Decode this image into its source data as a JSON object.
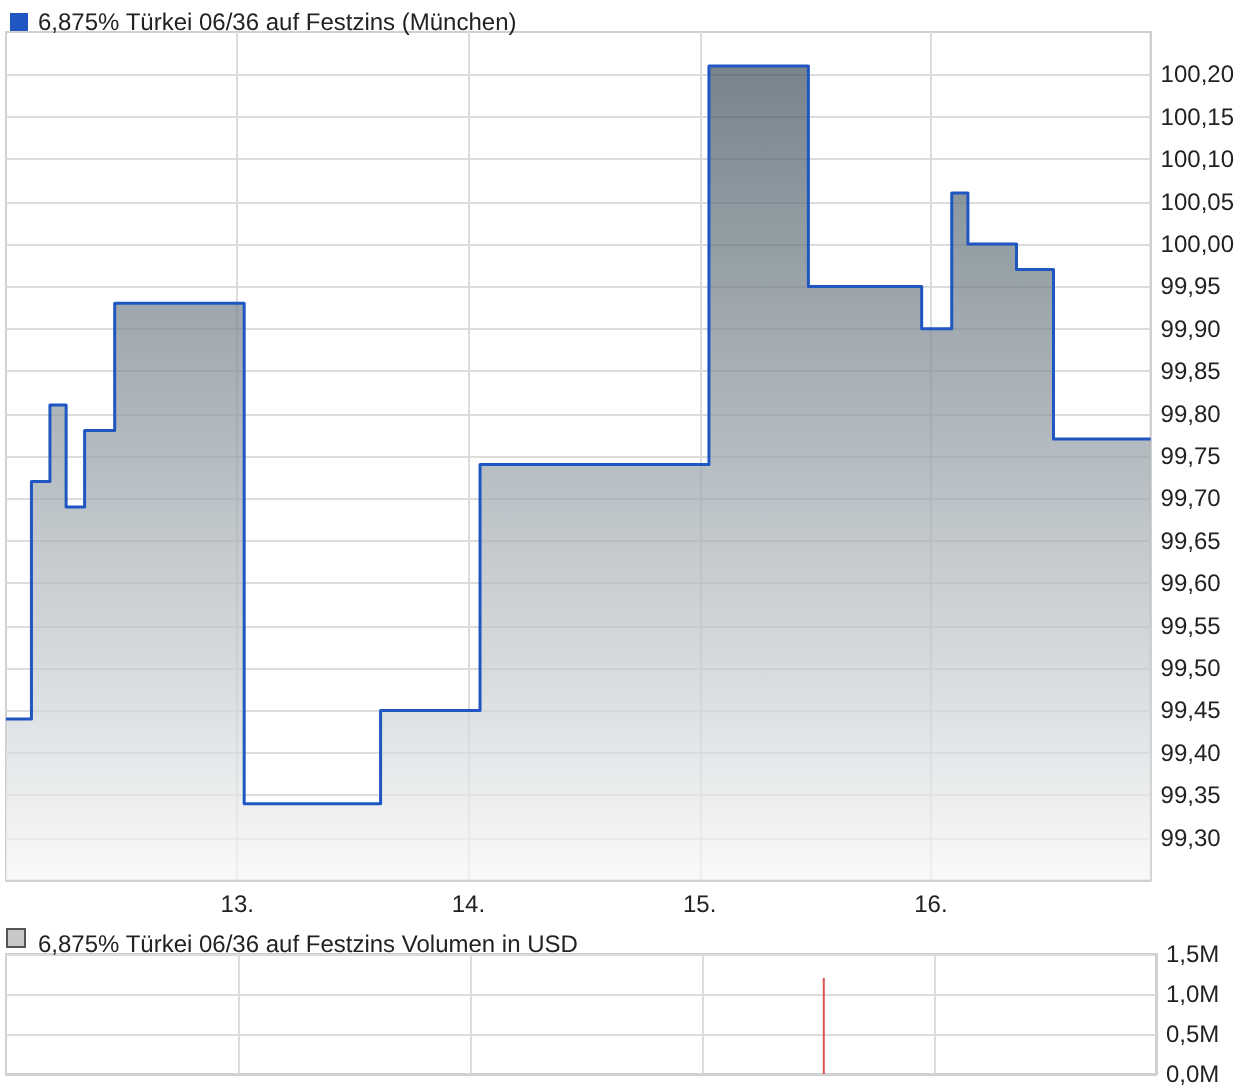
{
  "chart_data": [
    {
      "type": "area",
      "legend": "top left",
      "grid": true,
      "marker": "none",
      "line_style": "solid",
      "series": [
        {
          "name": "6,875% Türkei 06/36 auf Festzins (München)",
          "color": "#1f56c1",
          "x": [
            12.0,
            12.11,
            12.11,
            12.19,
            12.19,
            12.26,
            12.26,
            12.34,
            12.34,
            12.47,
            12.47,
            13.03,
            13.03,
            13.62,
            13.62,
            14.05,
            14.05,
            15.04,
            15.04,
            15.47,
            15.47,
            15.96,
            15.96,
            16.09,
            16.09,
            16.16,
            16.16,
            16.37,
            16.37,
            16.53,
            16.53,
            16.95
          ],
          "values": [
            99.44,
            99.44,
            99.72,
            99.72,
            99.81,
            99.81,
            99.69,
            99.69,
            99.78,
            99.78,
            99.93,
            99.93,
            99.34,
            99.34,
            99.45,
            99.45,
            99.74,
            99.74,
            100.21,
            100.21,
            99.95,
            99.95,
            99.9,
            99.9,
            100.06,
            100.06,
            100.0,
            100.0,
            99.97,
            99.97,
            99.77,
            99.77
          ]
        }
      ],
      "xlim": [
        12.0,
        16.95
      ],
      "xticks": [
        {
          "value": 13,
          "label": "13."
        },
        {
          "value": 14,
          "label": "14."
        },
        {
          "value": 15,
          "label": "15."
        },
        {
          "value": 16,
          "label": "16."
        }
      ],
      "ylim": [
        99.25,
        100.25
      ],
      "yticks": [
        {
          "value": 99.3,
          "label": "99,30"
        },
        {
          "value": 99.35,
          "label": "99,35"
        },
        {
          "value": 99.4,
          "label": "99,40"
        },
        {
          "value": 99.45,
          "label": "99,45"
        },
        {
          "value": 99.5,
          "label": "99,50"
        },
        {
          "value": 99.55,
          "label": "99,55"
        },
        {
          "value": 99.6,
          "label": "99,60"
        },
        {
          "value": 99.65,
          "label": "99,65"
        },
        {
          "value": 99.7,
          "label": "99,70"
        },
        {
          "value": 99.75,
          "label": "99,75"
        },
        {
          "value": 99.8,
          "label": "99,80"
        },
        {
          "value": 99.85,
          "label": "99,85"
        },
        {
          "value": 99.9,
          "label": "99,90"
        },
        {
          "value": 99.95,
          "label": "99,95"
        },
        {
          "value": 100.0,
          "label": "100,00"
        },
        {
          "value": 100.05,
          "label": "100,05"
        },
        {
          "value": 100.1,
          "label": "100,10"
        },
        {
          "value": 100.15,
          "label": "100,15"
        },
        {
          "value": 100.2,
          "label": "100,20"
        }
      ]
    },
    {
      "type": "bar",
      "title": "6,875% Türkei 06/36 auf Festzins Volumen in USD",
      "grid": true,
      "tick_labels": "y",
      "x": [
        15.52
      ],
      "values": [
        1200000
      ],
      "color": "#d9534f",
      "xlim": [
        12.0,
        16.95
      ],
      "xticks": [
        13,
        14,
        15,
        16
      ],
      "ylim": [
        0,
        1500000
      ],
      "yticks": [
        {
          "value": 0,
          "label": "0,0M"
        },
        {
          "value": 500000,
          "label": "0,5M"
        },
        {
          "value": 1000000,
          "label": "1,0M"
        },
        {
          "value": 1500000,
          "label": "1,5M"
        }
      ]
    }
  ]
}
